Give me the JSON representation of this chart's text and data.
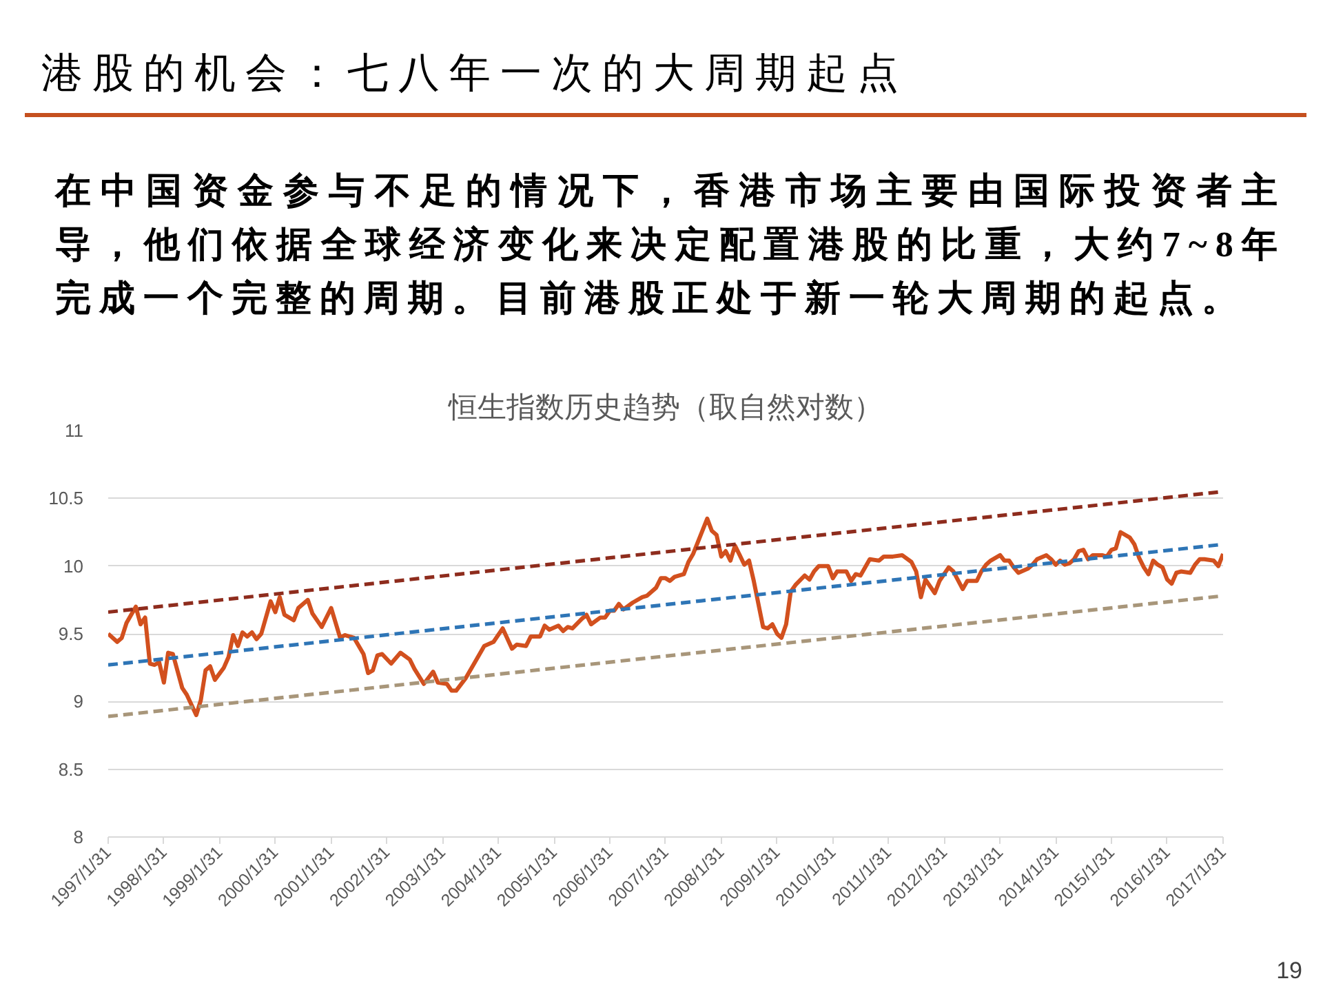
{
  "chart_data": {
    "type": "line",
    "title": "港股的机会：七八年一次的大周期起点",
    "subtitle": "在中国资金参与不足的情况下，香港市场主要由国际投资者主导，他们依据全球经济变化来决定配置港股的比重，大约7~8年完成一个完整的周期。目前港股正处于新一轮大周期的起点。",
    "annotations": [
      "恒生指数历史趋势（取自然对数）",
      "19"
    ],
    "xlim": [
      "1997-01-31",
      "2017-01-31"
    ],
    "xticks": [
      {
        "value": "1997-01-31",
        "label": "1997/1/31"
      },
      {
        "value": "1998-01-31",
        "label": "1998/1/31"
      },
      {
        "value": "1999-01-31",
        "label": "1999/1/31"
      },
      {
        "value": "2000-01-31",
        "label": "2000/1/31"
      },
      {
        "value": "2001-01-31",
        "label": "2001/1/31"
      },
      {
        "value": "2002-01-31",
        "label": "2002/1/31"
      },
      {
        "value": "2003-01-31",
        "label": "2003/1/31"
      },
      {
        "value": "2004-01-31",
        "label": "2004/1/31"
      },
      {
        "value": "2005-01-31",
        "label": "2005/1/31"
      },
      {
        "value": "2006-01-31",
        "label": "2006/1/31"
      },
      {
        "value": "2007-01-31",
        "label": "2007/1/31"
      },
      {
        "value": "2008-01-31",
        "label": "2008/1/31"
      },
      {
        "value": "2009-01-31",
        "label": "2009/1/31"
      },
      {
        "value": "2010-01-31",
        "label": "2010/1/31"
      },
      {
        "value": "2011-01-31",
        "label": "2011/1/31"
      },
      {
        "value": "2012-01-31",
        "label": "2012/1/31"
      },
      {
        "value": "2013-01-31",
        "label": "2013/1/31"
      },
      {
        "value": "2014-01-31",
        "label": "2014/1/31"
      },
      {
        "value": "2015-01-31",
        "label": "2015/1/31"
      },
      {
        "value": "2016-01-31",
        "label": "2016/1/31"
      },
      {
        "value": "2017-01-31",
        "label": "2017/1/31"
      }
    ],
    "ylim": [
      8,
      11
    ],
    "yticks": [
      8,
      8.5,
      9,
      9.5,
      10,
      10.5,
      11
    ],
    "grid": "y",
    "series": [
      {
        "color": "#d2501e",
        "x": [
          "1997-01-31",
          "1997-03-31",
          "1997-04-30",
          "1997-05-31",
          "1997-07-31",
          "1997-08-31",
          "1997-09-30",
          "1997-10-31",
          "1997-11-30",
          "1997-12-31",
          "1998-01-31",
          "1998-02-28",
          "1998-03-31",
          "1998-05-31",
          "1998-06-30",
          "1998-08-31",
          "1998-09-30",
          "1998-10-31",
          "1998-11-30",
          "1998-12-31",
          "1999-02-28",
          "1999-03-31",
          "1999-04-30",
          "1999-05-31",
          "1999-06-30",
          "1999-07-31",
          "1999-08-31",
          "1999-09-30",
          "1999-10-31",
          "1999-12-31",
          "2000-01-31",
          "2000-02-29",
          "2000-03-31",
          "2000-05-31",
          "2000-06-30",
          "2000-08-31",
          "2000-09-30",
          "2000-11-30",
          "2001-01-31",
          "2001-03-31",
          "2001-04-30",
          "2001-06-30",
          "2001-08-31",
          "2001-09-30",
          "2001-10-31",
          "2001-11-30",
          "2001-12-31",
          "2002-02-28",
          "2002-04-30",
          "2002-06-30",
          "2002-07-31",
          "2002-09-30",
          "2002-11-30",
          "2002-12-31",
          "2003-02-28",
          "2003-03-31",
          "2003-04-30",
          "2003-06-30",
          "2003-08-31",
          "2003-10-31",
          "2003-12-31",
          "2004-02-29",
          "2004-04-30",
          "2004-05-31",
          "2004-07-31",
          "2004-08-31",
          "2004-10-31",
          "2004-11-30",
          "2004-12-31",
          "2005-02-28",
          "2005-03-31",
          "2005-04-30",
          "2005-05-31",
          "2005-07-31",
          "2005-08-31",
          "2005-09-30",
          "2005-11-30",
          "2005-12-31",
          "2006-01-31",
          "2006-02-28",
          "2006-03-31",
          "2006-04-30",
          "2006-06-30",
          "2006-08-31",
          "2006-09-30",
          "2006-11-30",
          "2006-12-31",
          "2007-01-31",
          "2007-02-28",
          "2007-03-31",
          "2007-05-31",
          "2007-06-30",
          "2007-07-31",
          "2007-10-31",
          "2007-11-30",
          "2007-12-31",
          "2008-01-31",
          "2008-02-29",
          "2008-03-31",
          "2008-04-30",
          "2008-05-31",
          "2008-06-30",
          "2008-07-31",
          "2008-08-31",
          "2008-10-31",
          "2008-11-30",
          "2008-12-31",
          "2009-01-31",
          "2009-02-28",
          "2009-03-31",
          "2009-04-30",
          "2009-05-31",
          "2009-07-31",
          "2009-08-31",
          "2009-09-30",
          "2009-10-31",
          "2009-12-31",
          "2010-01-31",
          "2010-02-28",
          "2010-04-30",
          "2010-05-31",
          "2010-06-30",
          "2010-07-31",
          "2010-09-30",
          "2010-11-30",
          "2010-12-31",
          "2011-02-28",
          "2011-04-30",
          "2011-06-30",
          "2011-07-31",
          "2011-08-31",
          "2011-09-30",
          "2011-11-30",
          "2011-12-31",
          "2012-02-29",
          "2012-03-31",
          "2012-05-31",
          "2012-06-30",
          "2012-08-31",
          "2012-09-30",
          "2012-10-31",
          "2012-11-30",
          "2013-01-31",
          "2013-02-28",
          "2013-03-31",
          "2013-04-30",
          "2013-05-31",
          "2013-07-31",
          "2013-08-31",
          "2013-09-30",
          "2013-11-30",
          "2013-12-31",
          "2014-01-31",
          "2014-02-28",
          "2014-03-31",
          "2014-04-30",
          "2014-05-31",
          "2014-06-30",
          "2014-07-31",
          "2014-08-31",
          "2014-09-30",
          "2014-11-30",
          "2014-12-31",
          "2015-01-31",
          "2015-02-28",
          "2015-03-31",
          "2015-05-31",
          "2015-06-30",
          "2015-07-31",
          "2015-08-31",
          "2015-09-30",
          "2015-10-31",
          "2015-11-30",
          "2015-12-31",
          "2016-01-31",
          "2016-02-29",
          "2016-03-31",
          "2016-04-30",
          "2016-06-30",
          "2016-07-31",
          "2016-08-31",
          "2016-09-30",
          "2016-11-30",
          "2016-12-31",
          "2017-01-31"
        ],
        "values": [
          9.5,
          9.44,
          9.47,
          9.58,
          9.7,
          9.57,
          9.62,
          9.28,
          9.27,
          9.29,
          9.14,
          9.36,
          9.35,
          9.1,
          9.05,
          8.9,
          9.01,
          9.23,
          9.26,
          9.16,
          9.25,
          9.33,
          9.49,
          9.41,
          9.51,
          9.48,
          9.51,
          9.46,
          9.5,
          9.74,
          9.66,
          9.77,
          9.64,
          9.6,
          9.69,
          9.75,
          9.65,
          9.55,
          9.69,
          9.47,
          9.49,
          9.47,
          9.35,
          9.21,
          9.23,
          9.34,
          9.35,
          9.28,
          9.36,
          9.31,
          9.24,
          9.13,
          9.22,
          9.14,
          9.13,
          9.08,
          9.08,
          9.17,
          9.29,
          9.41,
          9.44,
          9.54,
          9.39,
          9.42,
          9.41,
          9.48,
          9.48,
          9.56,
          9.53,
          9.56,
          9.52,
          9.55,
          9.54,
          9.61,
          9.64,
          9.57,
          9.62,
          9.62,
          9.67,
          9.67,
          9.72,
          9.68,
          9.73,
          9.77,
          9.78,
          9.84,
          9.91,
          9.91,
          9.89,
          9.92,
          9.94,
          10.03,
          10.09,
          10.35,
          10.26,
          10.23,
          10.07,
          10.11,
          10.04,
          10.15,
          10.08,
          10.01,
          10.04,
          9.89,
          9.55,
          9.54,
          9.57,
          9.5,
          9.47,
          9.57,
          9.81,
          9.86,
          9.93,
          9.9,
          9.96,
          10.0,
          10.0,
          9.91,
          9.96,
          9.96,
          9.89,
          9.94,
          9.93,
          10.05,
          10.04,
          10.07,
          10.07,
          10.08,
          10.03,
          9.96,
          9.77,
          9.9,
          9.8,
          9.89,
          9.99,
          9.96,
          9.83,
          9.89,
          9.89,
          9.96,
          10.01,
          10.04,
          10.08,
          10.04,
          10.04,
          9.99,
          9.95,
          9.98,
          10.01,
          10.05,
          10.08,
          10.05,
          10.01,
          10.04,
          10.01,
          10.02,
          10.05,
          10.11,
          10.12,
          10.05,
          10.08,
          10.08,
          10.07,
          10.12,
          10.13,
          10.25,
          10.21,
          10.16,
          10.06,
          9.99,
          9.94,
          10.04,
          10.01,
          9.99,
          9.9,
          9.87,
          9.95,
          9.96,
          9.95,
          10.01,
          10.05,
          10.05,
          10.04,
          10.0,
          10.09
        ]
      },
      {
        "color": "#8e2c1d",
        "x": [
          "1997-01-31",
          "2017-01-31"
        ],
        "values": [
          9.66,
          10.55
        ],
        "line_style": "dashed"
      },
      {
        "color": "#2e75b6",
        "x": [
          "1997-01-31",
          "2017-01-31"
        ],
        "values": [
          9.27,
          10.16
        ],
        "line_style": "dashed"
      },
      {
        "color": "#a8967a",
        "x": [
          "1997-01-31",
          "2017-01-31"
        ],
        "values": [
          8.89,
          9.78
        ],
        "line_style": "dashed"
      }
    ]
  }
}
